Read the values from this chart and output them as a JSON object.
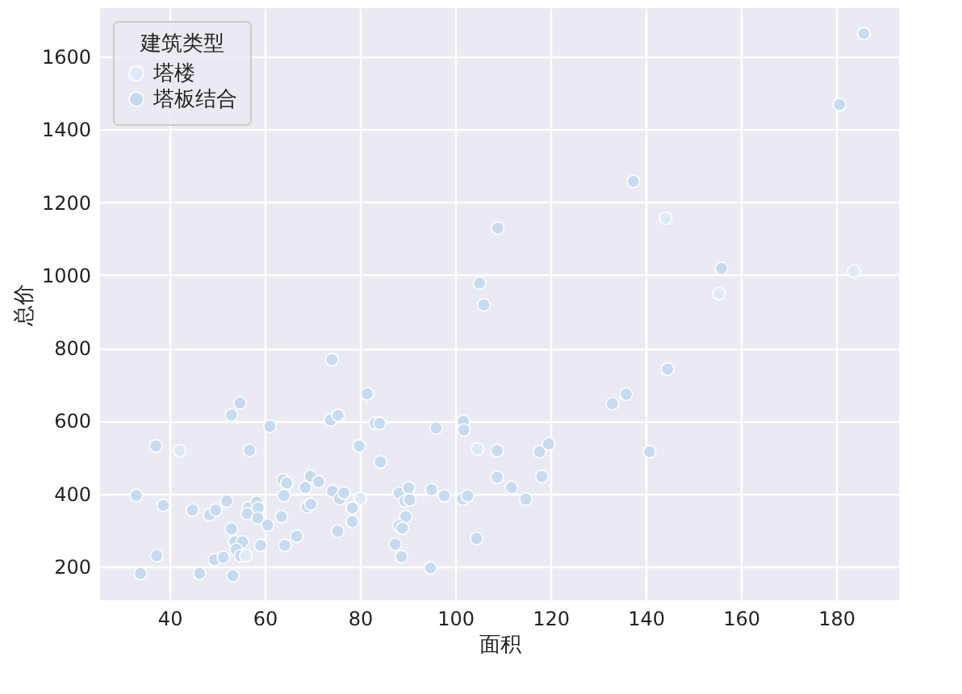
{
  "chart_data": {
    "type": "scatter",
    "xlabel": "面积",
    "ylabel": "总价",
    "legend_title": "建筑类型",
    "legend": "top left",
    "grid": true,
    "marker": "circle",
    "xlim": [
      25.4,
      193.2
    ],
    "ylim": [
      107,
      1733
    ],
    "xticks": [
      40,
      60,
      80,
      100,
      120,
      140,
      160,
      180
    ],
    "yticks": [
      200,
      400,
      600,
      800,
      1000,
      1200,
      1400,
      1600
    ],
    "series": [
      {
        "name": "塔楼",
        "color": "#deebf7",
        "x": [
          42.1,
          104.7,
          56.0,
          80.1,
          144.2,
          155.4,
          183.7
        ],
        "values": [
          518,
          522,
          230,
          387,
          1156,
          949,
          1011
        ]
      },
      {
        "name": "塔板结合",
        "color": "#c6dbef",
        "x": [
          74.1,
          81.5,
          54.8,
          53.0,
          61.1,
          73.8,
          75.4,
          83.2,
          84.1,
          96.0,
          101.7,
          101.8,
          37.1,
          56.8,
          79.8,
          84.3,
          108.8,
          108.8,
          33.0,
          38.7,
          44.8,
          48.4,
          49.7,
          52.0,
          56.6,
          58.3,
          58.6,
          56.3,
          58.5,
          60.6,
          63.5,
          64.0,
          63.8,
          64.6,
          68.5,
          69.6,
          71.3,
          68.9,
          69.7,
          66.7,
          64.2,
          59.1,
          53.0,
          53.7,
          55.3,
          54.0,
          49.4,
          51.3,
          54.9,
          37.3,
          33.9,
          46.3,
          53.3,
          74.2,
          75.7,
          76.6,
          78.4,
          78.4,
          75.3,
          88.2,
          90.2,
          89.4,
          90.4,
          89.6,
          88.2,
          88.9,
          87.4,
          88.7,
          94.8,
          95.0,
          97.7,
          101.5,
          102.6,
          104.5,
          108.9,
          105.1,
          106.0,
          185.8,
          180.7,
          137.4,
          155.9,
          144.6,
          135.9,
          133.0,
          117.7,
          119.6,
          140.8,
          118.2,
          111.8,
          114.8
        ],
        "values": [
          768,
          674,
          649,
          616,
          585,
          602,
          615,
          593,
          593,
          580,
          599,
          575,
          531,
          519,
          531,
          487,
          518,
          445,
          395,
          368,
          355,
          342,
          355,
          380,
          361,
          377,
          361,
          345,
          333,
          314,
          337,
          395,
          438,
          429,
          417,
          448,
          433,
          364,
          371,
          283,
          258,
          258,
          303,
          268,
          268,
          247,
          219,
          225,
          230,
          230,
          181,
          181,
          175,
          407,
          386,
          402,
          361,
          323,
          297,
          402,
          416,
          380,
          383,
          337,
          312,
          305,
          261,
          227,
          196,
          411,
          394,
          385,
          394,
          277,
          1129,
          978,
          918,
          1663,
          1468,
          1257,
          1018,
          742,
          673,
          647,
          515,
          537,
          515,
          447,
          417,
          385
        ]
      }
    ]
  }
}
